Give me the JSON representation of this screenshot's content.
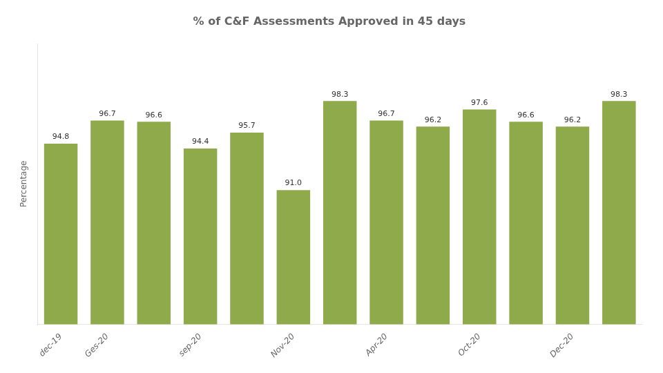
{
  "chart_data": {
    "type": "bar",
    "title": "% of C&F Assessments Approved in 45 days",
    "categories": [
      "dec-19",
      "Ges-20",
      null,
      "sep-20",
      null,
      "Nov-20",
      null,
      "Apr-20",
      null,
      "Oct-20",
      null,
      "Dec-20",
      null
    ],
    "values": [
      94.8,
      96.7,
      96.6,
      94.4,
      95.7,
      91.0,
      98.3,
      96.7,
      96.2,
      97.6,
      96.6,
      96.2,
      98.3
    ],
    "value_labels": [
      "94.8",
      "96.7",
      "96.6",
      "94.4",
      "95.7",
      "91.0",
      "98.3",
      "96.7",
      "96.2",
      "97.6",
      "96.6",
      "96.2",
      "98.3"
    ],
    "data_labels": true,
    "color": "#8faa4b",
    "y_label": "Percentage",
    "ylim": [
      80,
      103
    ],
    "yticks": [],
    "tick_labels": "x",
    "grid": false
  }
}
